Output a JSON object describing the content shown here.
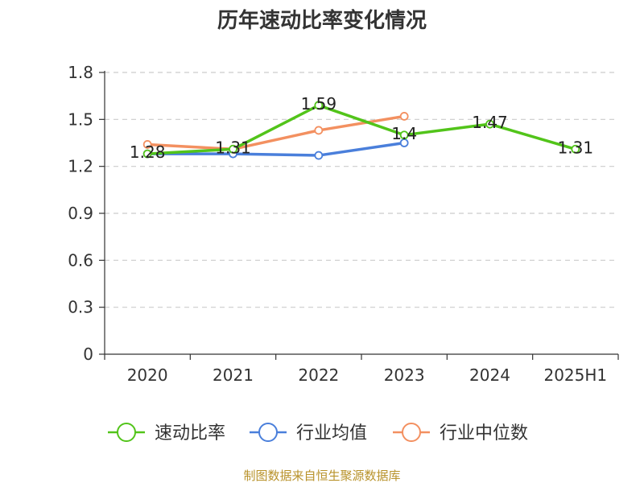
{
  "chart_data": {
    "type": "line",
    "title": "历年速动比率变化情况",
    "categories": [
      "2020",
      "2021",
      "2022",
      "2023",
      "2024",
      "2025H1"
    ],
    "y_ticks": [
      "0",
      "0.3",
      "0.6",
      "0.9",
      "1.2",
      "1.5",
      "1.8"
    ],
    "ylim": [
      0,
      1.8
    ],
    "grid": true,
    "legend_position": "bottom",
    "series": [
      {
        "name": "速动比率",
        "color": "#52c41a",
        "values": [
          1.28,
          1.31,
          1.59,
          1.4,
          1.47,
          1.31
        ],
        "labels": [
          "1.28",
          "1.31",
          "1.59",
          "1.4",
          "1.47",
          "1.31"
        ]
      },
      {
        "name": "行业均值",
        "color": "#4a7fdb",
        "values": [
          1.28,
          1.28,
          1.27,
          1.35,
          null,
          null
        ]
      },
      {
        "name": "行业中位数",
        "color": "#f39060",
        "values": [
          1.34,
          1.31,
          1.43,
          1.52,
          null,
          null
        ]
      }
    ]
  },
  "source": "制图数据来自恒生聚源数据库"
}
